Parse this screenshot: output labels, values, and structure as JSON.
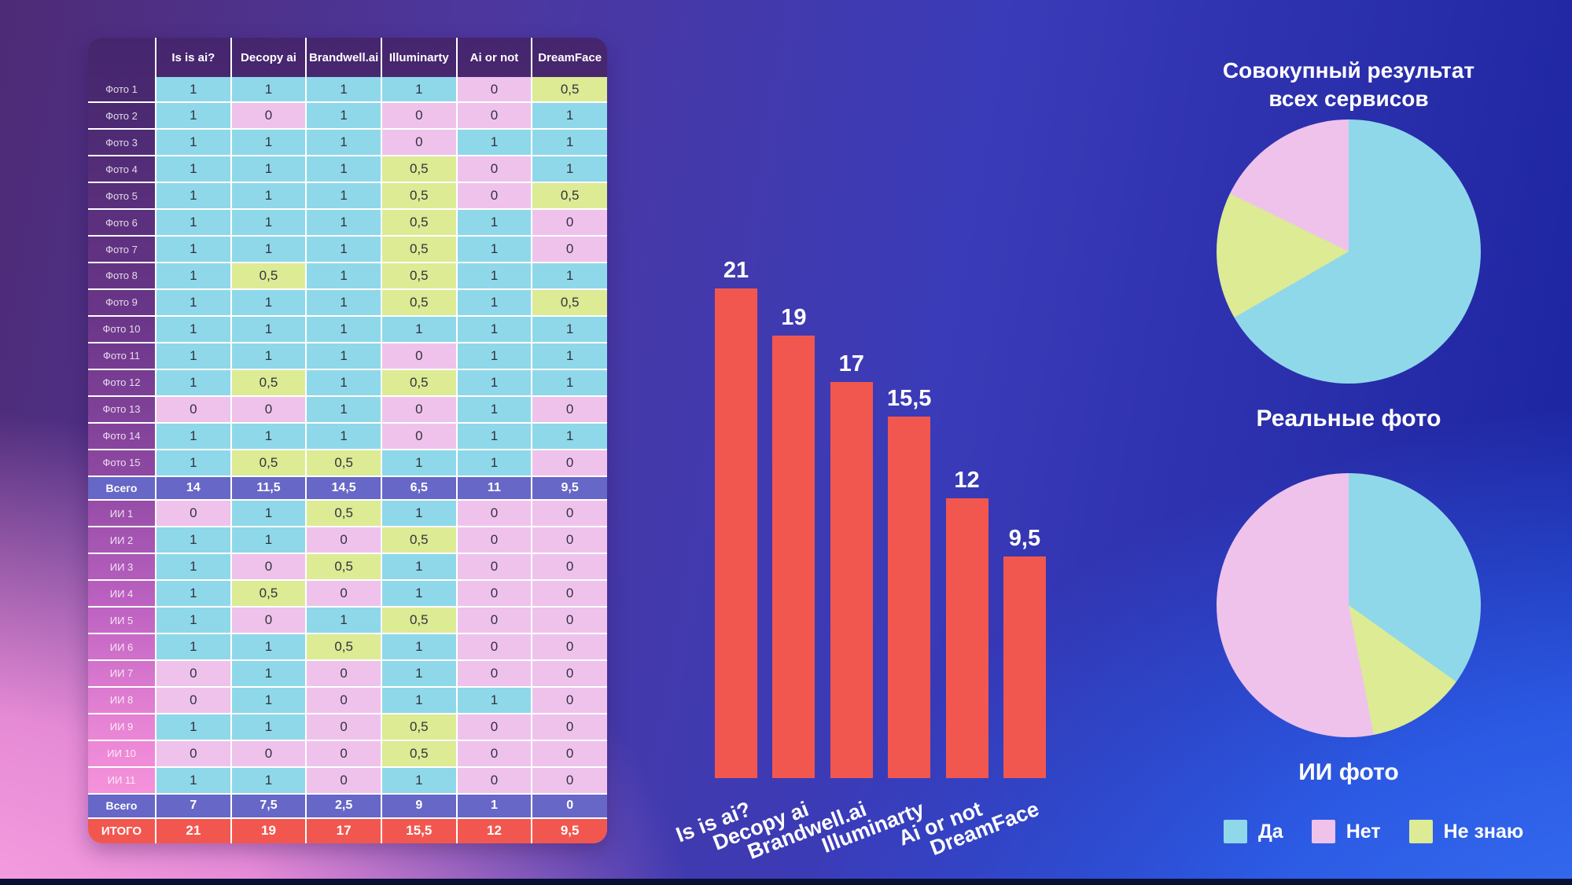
{
  "palette": {
    "yes": "#8FD8EA",
    "no": "#EFC2EC",
    "unknown": "#DCEB94",
    "summary_row": "#6667C6",
    "total_row": "#F2574F",
    "bar": "#F2574F",
    "header_bg": "#45256D"
  },
  "table": {
    "columns": [
      "Is is ai?",
      "Decopy ai",
      "Brandwell.ai",
      "Illuminarty",
      "Ai or not",
      "DreamFace"
    ],
    "real_photo_rows": [
      {
        "label": "Фото 1",
        "values": [
          "1",
          "1",
          "1",
          "1",
          "0",
          "0,5"
        ]
      },
      {
        "label": "Фото 2",
        "values": [
          "1",
          "0",
          "1",
          "0",
          "0",
          "1"
        ]
      },
      {
        "label": "Фото 3",
        "values": [
          "1",
          "1",
          "1",
          "0",
          "1",
          "1"
        ]
      },
      {
        "label": "Фото 4",
        "values": [
          "1",
          "1",
          "1",
          "0,5",
          "0",
          "1"
        ]
      },
      {
        "label": "Фото 5",
        "values": [
          "1",
          "1",
          "1",
          "0,5",
          "0",
          "0,5"
        ]
      },
      {
        "label": "Фото 6",
        "values": [
          "1",
          "1",
          "1",
          "0,5",
          "1",
          "0"
        ]
      },
      {
        "label": "Фото 7",
        "values": [
          "1",
          "1",
          "1",
          "0,5",
          "1",
          "0"
        ]
      },
      {
        "label": "Фото 8",
        "values": [
          "1",
          "0,5",
          "1",
          "0,5",
          "1",
          "1"
        ]
      },
      {
        "label": "Фото 9",
        "values": [
          "1",
          "1",
          "1",
          "0,5",
          "1",
          "0,5"
        ]
      },
      {
        "label": "Фото 10",
        "values": [
          "1",
          "1",
          "1",
          "1",
          "1",
          "1"
        ]
      },
      {
        "label": "Фото 11",
        "values": [
          "1",
          "1",
          "1",
          "0",
          "1",
          "1"
        ]
      },
      {
        "label": "Фото 12",
        "values": [
          "1",
          "0,5",
          "1",
          "0,5",
          "1",
          "1"
        ]
      },
      {
        "label": "Фото 13",
        "values": [
          "0",
          "0",
          "1",
          "0",
          "1",
          "0"
        ]
      },
      {
        "label": "Фото 14",
        "values": [
          "1",
          "1",
          "1",
          "0",
          "1",
          "1"
        ]
      },
      {
        "label": "Фото 15",
        "values": [
          "1",
          "0,5",
          "0,5",
          "1",
          "1",
          "0"
        ]
      }
    ],
    "real_total_row": {
      "label": "Всего",
      "values": [
        "14",
        "11,5",
        "14,5",
        "6,5",
        "11",
        "9,5"
      ]
    },
    "ai_photo_rows": [
      {
        "label": "ИИ 1",
        "values": [
          "0",
          "1",
          "0,5",
          "1",
          "0",
          "0"
        ]
      },
      {
        "label": "ИИ 2",
        "values": [
          "1",
          "1",
          "0",
          "0,5",
          "0",
          "0"
        ]
      },
      {
        "label": "ИИ 3",
        "values": [
          "1",
          "0",
          "0,5",
          "1",
          "0",
          "0"
        ]
      },
      {
        "label": "ИИ 4",
        "values": [
          "1",
          "0,5",
          "0",
          "1",
          "0",
          "0"
        ]
      },
      {
        "label": "ИИ 5",
        "values": [
          "1",
          "0",
          "1",
          "0,5",
          "0",
          "0"
        ]
      },
      {
        "label": "ИИ 6",
        "values": [
          "1",
          "1",
          "0,5",
          "1",
          "0",
          "0"
        ]
      },
      {
        "label": "ИИ 7",
        "values": [
          "0",
          "1",
          "0",
          "1",
          "0",
          "0"
        ]
      },
      {
        "label": "ИИ 8",
        "values": [
          "0",
          "1",
          "0",
          "1",
          "1",
          "0"
        ]
      },
      {
        "label": "ИИ 9",
        "values": [
          "1",
          "1",
          "0",
          "0,5",
          "0",
          "0"
        ]
      },
      {
        "label": "ИИ 10",
        "values": [
          "0",
          "0",
          "0",
          "0,5",
          "0",
          "0"
        ]
      },
      {
        "label": "ИИ 11",
        "values": [
          "1",
          "1",
          "0",
          "1",
          "0",
          "0"
        ]
      }
    ],
    "ai_total_row": {
      "label": "Всего",
      "values": [
        "7",
        "7,5",
        "2,5",
        "9",
        "1",
        "0"
      ]
    },
    "grand_total_row": {
      "label": "ИТОГО",
      "values": [
        "21",
        "19",
        "17",
        "15,5",
        "12",
        "9,5"
      ]
    }
  },
  "chart_data": [
    {
      "type": "bar",
      "categories": [
        "Is is ai?",
        "Decopy ai",
        "Brandwell.ai",
        "Illuminarty",
        "Ai or not",
        "DreamFace"
      ],
      "values": [
        21,
        19,
        17,
        15.5,
        12,
        9.5
      ],
      "value_labels": [
        "21",
        "19",
        "17",
        "15,5",
        "12",
        "9,5"
      ],
      "ylim": [
        0,
        22
      ],
      "bar_color": "#F2574F",
      "grid": false,
      "legend_position": "none"
    },
    {
      "type": "pie",
      "title": "Совокупный результат всех сервисов",
      "caption": "Реальные фото",
      "slices": [
        {
          "label": "Да",
          "value": 60,
          "pct": 66.7,
          "color": "#8FD8EA"
        },
        {
          "label": "Не знаю",
          "value": 14,
          "pct": 15.6,
          "color": "#DCEB94"
        },
        {
          "label": "Нет",
          "value": 16,
          "pct": 17.8,
          "color": "#EFC2EC"
        }
      ]
    },
    {
      "type": "pie",
      "title": "",
      "caption": "ИИ фото",
      "slices": [
        {
          "label": "Да",
          "value": 23,
          "pct": 34.8,
          "color": "#8FD8EA"
        },
        {
          "label": "Не знаю",
          "value": 8,
          "pct": 12.1,
          "color": "#DCEB94"
        },
        {
          "label": "Нет",
          "value": 35,
          "pct": 53.0,
          "color": "#EFC2EC"
        }
      ]
    }
  ],
  "legend": [
    {
      "label": "Да",
      "color": "#8FD8EA"
    },
    {
      "label": "Нет",
      "color": "#EFC2EC"
    },
    {
      "label": "Не знаю",
      "color": "#DCEB94"
    }
  ]
}
